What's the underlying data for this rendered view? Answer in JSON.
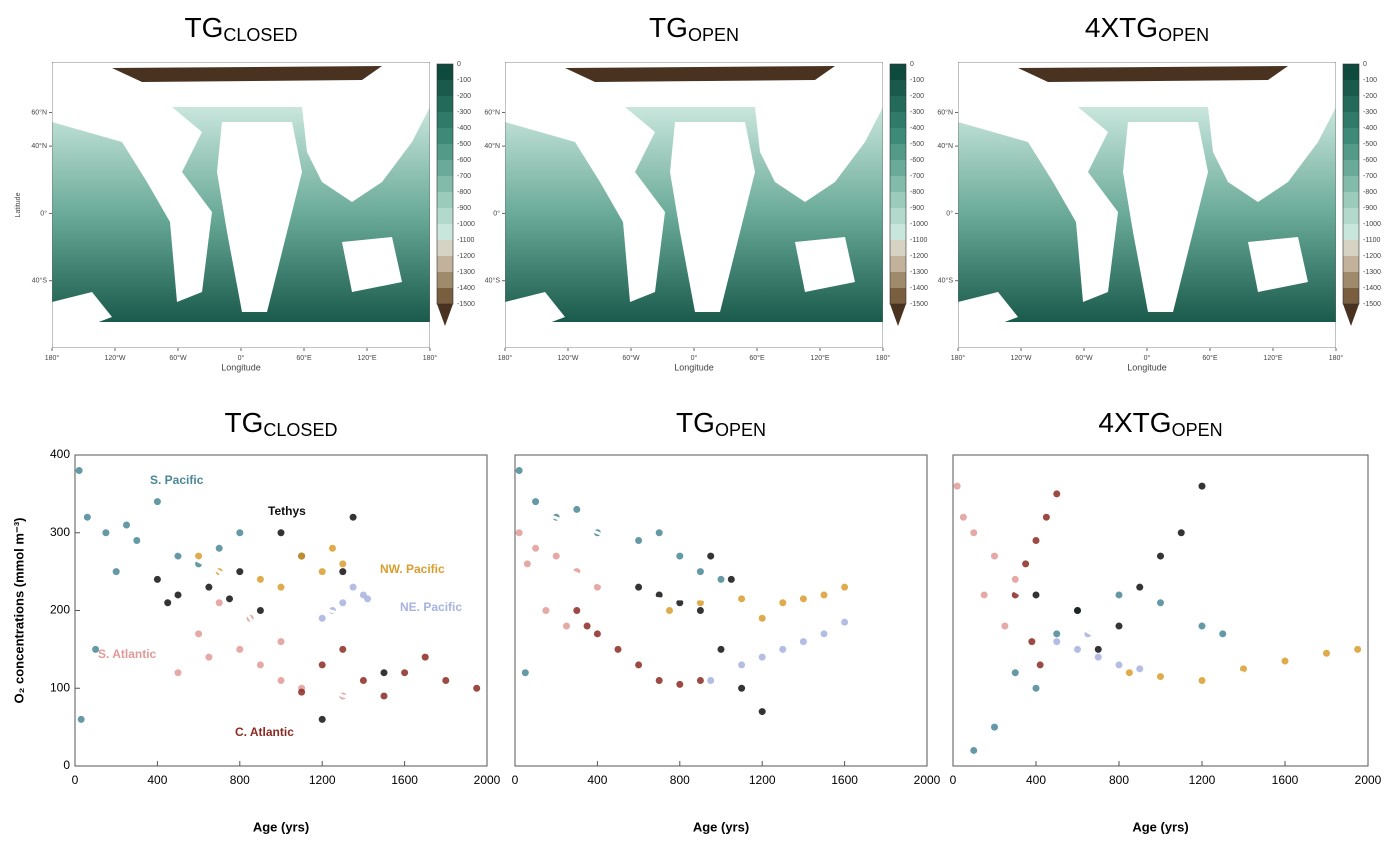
{
  "maps": [
    {
      "title": {
        "main": "TG",
        "sub": "CLOSED"
      },
      "xlabel": "Longitude",
      "ylabel": "Latitude"
    },
    {
      "title": {
        "main": "TG",
        "sub": "OPEN"
      },
      "xlabel": "Longitude"
    },
    {
      "title": {
        "main": "4XTG",
        "sub": "OPEN"
      },
      "xlabel": "Longitude"
    }
  ],
  "map_axes": {
    "xlim": [
      -180,
      180
    ],
    "ylim": [
      -80,
      90
    ],
    "xticks": [
      {
        "value": -180,
        "label": "180°"
      },
      {
        "value": -120,
        "label": "120°W"
      },
      {
        "value": -60,
        "label": "60°W"
      },
      {
        "value": 0,
        "label": "0°"
      },
      {
        "value": 60,
        "label": "60°E"
      },
      {
        "value": 120,
        "label": "120°E"
      },
      {
        "value": 180,
        "label": "180°"
      }
    ],
    "yticks": [
      {
        "value": 60,
        "label": "60°N"
      },
      {
        "value": 40,
        "label": "40°N"
      },
      {
        "value": 0,
        "label": "0°"
      },
      {
        "value": -40,
        "label": "40°S"
      }
    ]
  },
  "colorbar": {
    "ticks": [
      0,
      -100,
      -200,
      -300,
      -400,
      -500,
      -600,
      -700,
      -800,
      -900,
      -1000,
      -1100,
      -1200,
      -1300,
      -1400,
      -1500
    ],
    "colors": [
      "#0f4a3e",
      "#1a5a4c",
      "#246a5a",
      "#2f7a69",
      "#3e8a78",
      "#539a88",
      "#6aaa98",
      "#82bba9",
      "#9acbbb",
      "#b2d9cc",
      "#c9e6dd",
      "#d6d2c4",
      "#c2b29c",
      "#a08a6c",
      "#7a5e40",
      "#4a3220"
    ]
  },
  "chart_data": [
    {
      "type": "scatter",
      "title": {
        "main": "TG",
        "sub": "CLOSED"
      },
      "xlabel": "Age (yrs)",
      "ylabel": "O₂ concentrations (mmol m⁻³)",
      "xlim": [
        0,
        2000
      ],
      "ylim": [
        0,
        400
      ],
      "xticks": [
        0,
        400,
        800,
        1200,
        1600,
        2000
      ],
      "yticks": [
        0,
        100,
        200,
        300,
        400
      ],
      "series": [
        {
          "name": "S. Pacific",
          "color": "#4a8796",
          "mode": "markers",
          "x": [
            20,
            60,
            150,
            300,
            500,
            700,
            200,
            100,
            400,
            800,
            30,
            250,
            600
          ],
          "y": [
            380,
            320,
            300,
            290,
            270,
            280,
            250,
            150,
            340,
            300,
            60,
            310,
            260
          ]
        },
        {
          "name": "Tethys",
          "color": "#111111",
          "mode": "markers",
          "x": [
            400,
            500,
            650,
            800,
            1000,
            1100,
            1300,
            1350,
            900,
            1500,
            1200,
            450,
            750
          ],
          "y": [
            240,
            220,
            230,
            250,
            300,
            270,
            250,
            320,
            200,
            120,
            60,
            210,
            215
          ]
        },
        {
          "name": "NW. Pacific",
          "color": "#d99e2e",
          "mode": "markers",
          "x": [
            600,
            700,
            1000,
            1100,
            1200,
            1300,
            900,
            1250
          ],
          "y": [
            270,
            250,
            230,
            270,
            250,
            260,
            240,
            280
          ]
        },
        {
          "name": "NE. Pacific",
          "color": "#a7b3e0",
          "mode": "markers",
          "x": [
            1200,
            1300,
            1400,
            1250,
            1350,
            1420
          ],
          "y": [
            190,
            210,
            220,
            200,
            230,
            215
          ]
        },
        {
          "name": "S. Atlantic",
          "color": "#e09a97",
          "mode": "markers",
          "x": [
            600,
            800,
            900,
            1000,
            1100,
            1300,
            700,
            500,
            1000,
            850,
            650
          ],
          "y": [
            170,
            150,
            130,
            110,
            100,
            90,
            210,
            120,
            160,
            190,
            140
          ]
        },
        {
          "name": "C. Atlantic",
          "color": "#8b2a22",
          "mode": "markers",
          "x": [
            1200,
            1400,
            1600,
            1800,
            1950,
            1500,
            1300,
            1700,
            1100
          ],
          "y": [
            130,
            110,
            120,
            110,
            100,
            90,
            150,
            140,
            95
          ]
        },
        {
          "color": "#ffffff",
          "mode": "line",
          "x": [
            80,
            400,
            700,
            900,
            1100,
            1300
          ],
          "y": [
            313,
            290,
            250,
            225,
            210,
            195
          ]
        },
        {
          "color": "#ffffff",
          "mode": "line",
          "x": [
            700,
            900,
            1100,
            1300,
            1500
          ],
          "y": [
            250,
            170,
            120,
            90,
            82
          ]
        }
      ]
    },
    {
      "type": "scatter",
      "title": {
        "main": "TG",
        "sub": "OPEN"
      },
      "xlabel": "Age (yrs)",
      "xlim": [
        0,
        2000
      ],
      "xticks": [
        0,
        400,
        800,
        1200,
        1600,
        2000
      ],
      "series": [
        {
          "color": "#4a8796",
          "mode": "markers",
          "x": [
            20,
            100,
            200,
            400,
            600,
            800,
            1000,
            300,
            50,
            900,
            700
          ],
          "y": [
            380,
            340,
            320,
            300,
            290,
            270,
            240,
            330,
            120,
            250,
            300
          ]
        },
        {
          "color": "#e09a97",
          "mode": "markers",
          "x": [
            20,
            100,
            200,
            300,
            400,
            150,
            250,
            60
          ],
          "y": [
            300,
            280,
            270,
            250,
            230,
            200,
            180,
            260
          ]
        },
        {
          "color": "#8b2a22",
          "mode": "markers",
          "x": [
            300,
            400,
            500,
            600,
            700,
            800,
            900,
            350
          ],
          "y": [
            200,
            170,
            150,
            130,
            110,
            105,
            110,
            180
          ]
        },
        {
          "color": "#111111",
          "mode": "markers",
          "x": [
            600,
            700,
            800,
            900,
            1000,
            1100,
            1200,
            950,
            1050
          ],
          "y": [
            230,
            220,
            210,
            200,
            150,
            100,
            70,
            270,
            240
          ]
        },
        {
          "color": "#d99e2e",
          "mode": "markers",
          "x": [
            750,
            900,
            1100,
            1300,
            1400,
            1500,
            1600,
            1200
          ],
          "y": [
            200,
            210,
            215,
            210,
            215,
            220,
            230,
            190
          ]
        },
        {
          "color": "#a7b3e0",
          "mode": "markers",
          "x": [
            950,
            1100,
            1200,
            1300,
            1400,
            1500,
            1600
          ],
          "y": [
            110,
            130,
            140,
            150,
            160,
            170,
            185
          ]
        },
        {
          "color": "#ffffff",
          "mode": "line",
          "x": [
            80,
            300,
            500,
            700,
            900,
            1100,
            1200
          ],
          "y": [
            330,
            310,
            290,
            260,
            220,
            180,
            160
          ]
        },
        {
          "color": "#ffffff",
          "mode": "line",
          "x": [
            250,
            500,
            700,
            900,
            1000
          ],
          "y": [
            253,
            225,
            215,
            215,
            210
          ]
        }
      ]
    },
    {
      "type": "scatter",
      "title": {
        "main": "4XTG",
        "sub": "OPEN"
      },
      "xlabel": "Age (yrs)",
      "xlim": [
        0,
        2000
      ],
      "xticks": [
        0,
        400,
        800,
        1200,
        1600,
        2000
      ],
      "series": [
        {
          "color": "#e09a97",
          "mode": "markers",
          "x": [
            20,
            100,
            200,
            300,
            150,
            50,
            250
          ],
          "y": [
            360,
            300,
            270,
            240,
            220,
            320,
            180
          ]
        },
        {
          "color": "#8b2a22",
          "mode": "markers",
          "x": [
            300,
            350,
            400,
            450,
            500,
            380,
            420
          ],
          "y": [
            220,
            260,
            290,
            320,
            350,
            160,
            130
          ]
        },
        {
          "color": "#4a8796",
          "mode": "markers",
          "x": [
            100,
            200,
            400,
            600,
            800,
            1000,
            1200,
            1300,
            300,
            500
          ],
          "y": [
            20,
            50,
            100,
            200,
            220,
            210,
            180,
            170,
            120,
            170
          ]
        },
        {
          "color": "#111111",
          "mode": "markers",
          "x": [
            400,
            600,
            800,
            900,
            1000,
            1100,
            1200,
            700
          ],
          "y": [
            220,
            200,
            180,
            230,
            270,
            300,
            360,
            150
          ]
        },
        {
          "color": "#a7b3e0",
          "mode": "markers",
          "x": [
            500,
            600,
            700,
            800,
            900,
            650
          ],
          "y": [
            160,
            150,
            140,
            130,
            125,
            170
          ]
        },
        {
          "color": "#d99e2e",
          "mode": "markers",
          "x": [
            850,
            1000,
            1200,
            1400,
            1600,
            1800,
            1950
          ],
          "y": [
            120,
            115,
            110,
            125,
            135,
            145,
            150
          ]
        },
        {
          "color": "#ffffff",
          "mode": "line",
          "x": [
            80,
            300,
            500,
            700,
            900,
            1100,
            1400
          ],
          "y": [
            253,
            225,
            195,
            165,
            135,
            123,
            120
          ]
        }
      ]
    }
  ]
}
